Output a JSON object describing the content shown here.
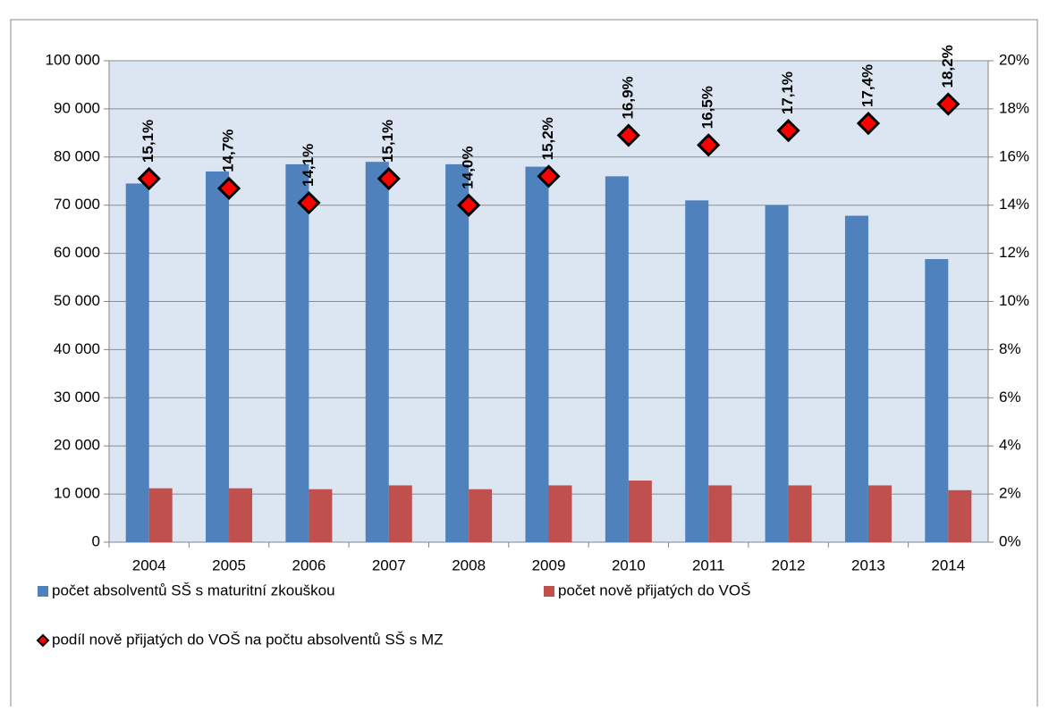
{
  "chart_data": {
    "type": "bar",
    "categories": [
      "2004",
      "2005",
      "2006",
      "2007",
      "2008",
      "2009",
      "2010",
      "2011",
      "2012",
      "2013",
      "2014"
    ],
    "series": [
      {
        "name": "počet absolventů SŠ s maturitní zkouškou",
        "color": "#4f81bd",
        "values": [
          74500,
          77000,
          78500,
          79000,
          78500,
          78000,
          76000,
          71000,
          70000,
          67800,
          58800
        ]
      },
      {
        "name": "počet nově přijatých do VOŠ",
        "color": "#c0504d",
        "values": [
          11200,
          11200,
          11000,
          11800,
          11000,
          11800,
          12800,
          11800,
          11800,
          11800,
          10800
        ]
      },
      {
        "name": "podíl nově přijatých do VOŠ na počtu absolventů SŠ s MZ",
        "color": "#ff0000",
        "axis": "y2",
        "marker": "diamond",
        "values": [
          15.1,
          14.7,
          14.1,
          15.1,
          14.0,
          15.2,
          16.9,
          16.5,
          17.1,
          17.4,
          18.2
        ],
        "value_labels": [
          "15,1%",
          "14,7%",
          "14,1%",
          "15,1%",
          "14,0%",
          "15,2%",
          "16,9%",
          "16,5%",
          "17,1%",
          "17,4%",
          "18,2%"
        ]
      }
    ],
    "ylim": [
      0,
      100000
    ],
    "yticks": [
      0,
      {
        "value": 10000,
        "label": "10 000"
      },
      {
        "value": 20000,
        "label": "20 000"
      },
      {
        "value": 30000,
        "label": "30 000"
      },
      {
        "value": 40000,
        "label": "40 000"
      },
      {
        "value": 50000,
        "label": "50 000"
      },
      {
        "value": 60000,
        "label": "60 000"
      },
      {
        "value": 70000,
        "label": "70 000"
      },
      {
        "value": 80000,
        "label": "80 000"
      },
      {
        "value": 90000,
        "label": "90 000"
      },
      {
        "value": 100000,
        "label": "100 000"
      }
    ],
    "y2lim": [
      0,
      20
    ],
    "y2ticks": [
      {
        "value": 0,
        "label": "0%"
      },
      {
        "value": 2,
        "label": "2%"
      },
      {
        "value": 4,
        "label": "4%"
      },
      {
        "value": 6,
        "label": "6%"
      },
      {
        "value": 8,
        "label": "8%"
      },
      {
        "value": 10,
        "label": "10%"
      },
      {
        "value": 12,
        "label": "12%"
      },
      {
        "value": 14,
        "label": "14%"
      },
      {
        "value": 16,
        "label": "16%"
      },
      {
        "value": 18,
        "label": "18%"
      },
      {
        "value": 20,
        "label": "20%"
      }
    ],
    "grid": true,
    "plot_background": "#dce6f2"
  }
}
